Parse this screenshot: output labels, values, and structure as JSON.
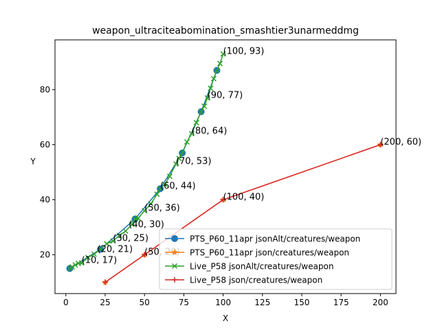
{
  "chart_data": {
    "type": "line",
    "title": "weapon_ultraciteabomination_smashtier3unarmeddmg",
    "xlabel": "X",
    "ylabel": "Y",
    "xlim": [
      -6.9,
      209.9
    ],
    "ylim": [
      5.9,
      98.1
    ],
    "xticks": [
      0,
      25,
      50,
      75,
      100,
      125,
      150,
      175,
      200
    ],
    "yticks": [
      20,
      40,
      60,
      80
    ],
    "legend_position": "lower right",
    "series": [
      {
        "name": "PTS_P60_11apr jsonAlt/creatures/weapon",
        "color": "#1f77b4",
        "marker": "circle",
        "points": [
          [
            2.5,
            15
          ],
          [
            22,
            22
          ],
          [
            44,
            33
          ],
          [
            60,
            44
          ],
          [
            74,
            57
          ],
          [
            86,
            72
          ],
          [
            96,
            87
          ]
        ]
      },
      {
        "name": "PTS_P60_11apr json/creatures/weapon",
        "color": "#ff7f0e",
        "marker": "star",
        "points": [
          [
            25,
            10
          ],
          [
            50,
            20
          ],
          [
            100,
            40
          ],
          [
            200,
            60
          ]
        ]
      },
      {
        "name": "Live_P58 jsonAlt/creatures/weapon",
        "color": "#2ca02c",
        "marker": "x",
        "points": [
          [
            2.5,
            15
          ],
          [
            4,
            15.6
          ],
          [
            6,
            16.3
          ],
          [
            8,
            16.9
          ],
          [
            10,
            17
          ],
          [
            14,
            19
          ],
          [
            18,
            20.2
          ],
          [
            22,
            22
          ],
          [
            26,
            24
          ],
          [
            30,
            25
          ],
          [
            34,
            27
          ],
          [
            38,
            28.6
          ],
          [
            42,
            31
          ],
          [
            44,
            33
          ],
          [
            46,
            33.3
          ],
          [
            50,
            36
          ],
          [
            54,
            38.5
          ],
          [
            58,
            42
          ],
          [
            60,
            44
          ],
          [
            63,
            45.6
          ],
          [
            66,
            48.5
          ],
          [
            70,
            53
          ],
          [
            72,
            55
          ],
          [
            74,
            57
          ],
          [
            77,
            61
          ],
          [
            80,
            64
          ],
          [
            83,
            68
          ],
          [
            86,
            72
          ],
          [
            88,
            74
          ],
          [
            90,
            77
          ],
          [
            92,
            80.5
          ],
          [
            94,
            84
          ],
          [
            96,
            87
          ],
          [
            98,
            89.5
          ],
          [
            100,
            93
          ]
        ]
      },
      {
        "name": "Live_P58 json/creatures/weapon",
        "color": "#d62728",
        "marker": "plus",
        "points": [
          [
            25,
            10
          ],
          [
            50,
            20
          ],
          [
            100,
            40
          ],
          [
            200,
            60
          ]
        ]
      }
    ],
    "annotations": [
      {
        "text": "(10, 17)",
        "x": 10,
        "y": 17
      },
      {
        "text": "(20, 21)",
        "x": 20,
        "y": 21
      },
      {
        "text": "(30, 25)",
        "x": 30,
        "y": 25
      },
      {
        "text": "(40, 30)",
        "x": 40,
        "y": 30
      },
      {
        "text": "(50, 36)",
        "x": 50,
        "y": 36
      },
      {
        "text": "(60, 44)",
        "x": 60,
        "y": 44
      },
      {
        "text": "(70, 53)",
        "x": 70,
        "y": 53
      },
      {
        "text": "(80, 64)",
        "x": 80,
        "y": 64
      },
      {
        "text": "(90, 77)",
        "x": 90,
        "y": 77
      },
      {
        "text": "(100, 93)",
        "x": 100,
        "y": 93
      },
      {
        "text": "(50, 20)",
        "x": 50,
        "y": 20
      },
      {
        "text": "(100, 40)",
        "x": 100,
        "y": 40
      },
      {
        "text": "(200, 60)",
        "x": 200,
        "y": 60
      }
    ]
  }
}
